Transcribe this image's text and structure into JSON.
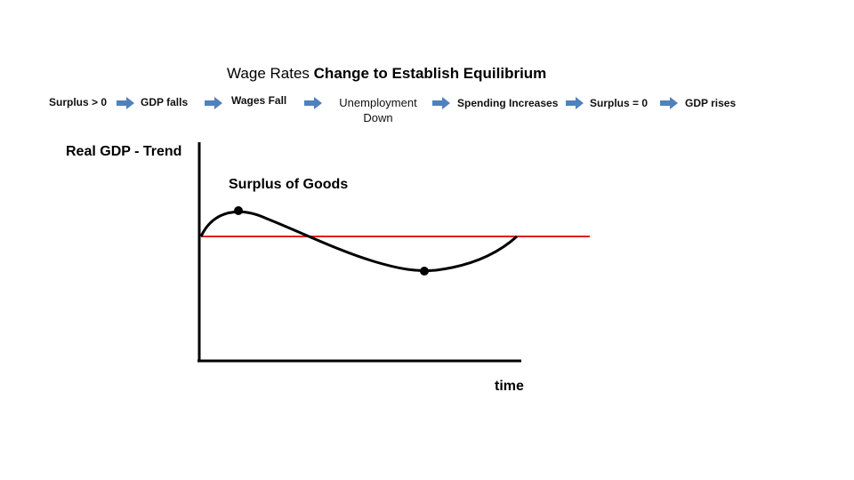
{
  "title": {
    "part1": "Wage Rates",
    "part2": "Change to",
    "part3": "Establish Equilibrium"
  },
  "flow": [
    {
      "label": "Surplus > 0"
    },
    {
      "label": "GDP falls"
    },
    {
      "label": "Wages Fall"
    },
    {
      "label": "Unemployment Down"
    },
    {
      "label": "Spending Increases"
    },
    {
      "label": "Surplus = 0"
    },
    {
      "label": "GDP rises"
    }
  ],
  "axes": {
    "y_label": "Real GDP - Trend",
    "x_label": "time"
  },
  "annotation": "Surplus of Goods",
  "colors": {
    "arrow": "#4f81bd",
    "trend_line": "#e02020",
    "curve": "#000000"
  }
}
